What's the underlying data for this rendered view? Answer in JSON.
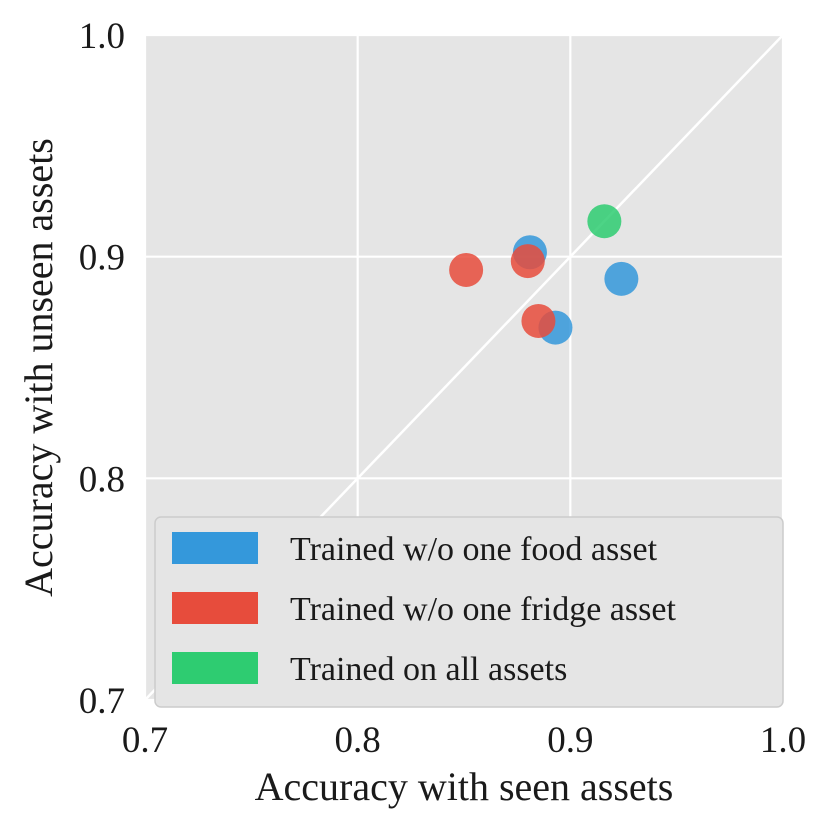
{
  "chart_data": {
    "type": "scatter",
    "xlabel": "Accuracy with seen assets",
    "ylabel": "Accuracy with unseen assets",
    "xlim": [
      0.7,
      1.0
    ],
    "ylim": [
      0.7,
      1.0
    ],
    "x_ticks": [
      "0.7",
      "0.8",
      "0.9",
      "1.0"
    ],
    "y_ticks": [
      "0.7",
      "0.8",
      "0.9",
      "1.0"
    ],
    "x_tick_values": [
      0.7,
      0.8,
      0.9,
      1.0
    ],
    "y_tick_values": [
      0.7,
      0.8,
      0.9,
      1.0
    ],
    "grid": true,
    "background": "#e5e5e5",
    "diagonal_line": true,
    "legend_position": "lower-right",
    "series": [
      {
        "name": "Trained w/o one food asset",
        "color": "#3498db",
        "points": [
          {
            "x": 0.881,
            "y": 0.902
          },
          {
            "x": 0.893,
            "y": 0.868
          },
          {
            "x": 0.924,
            "y": 0.89
          }
        ]
      },
      {
        "name": "Trained w/o one fridge asset",
        "color": "#e74c3c",
        "points": [
          {
            "x": 0.851,
            "y": 0.894
          },
          {
            "x": 0.88,
            "y": 0.898
          },
          {
            "x": 0.885,
            "y": 0.871
          }
        ]
      },
      {
        "name": "Trained on all assets",
        "color": "#2ecc71",
        "points": [
          {
            "x": 0.916,
            "y": 0.916
          }
        ]
      }
    ]
  }
}
